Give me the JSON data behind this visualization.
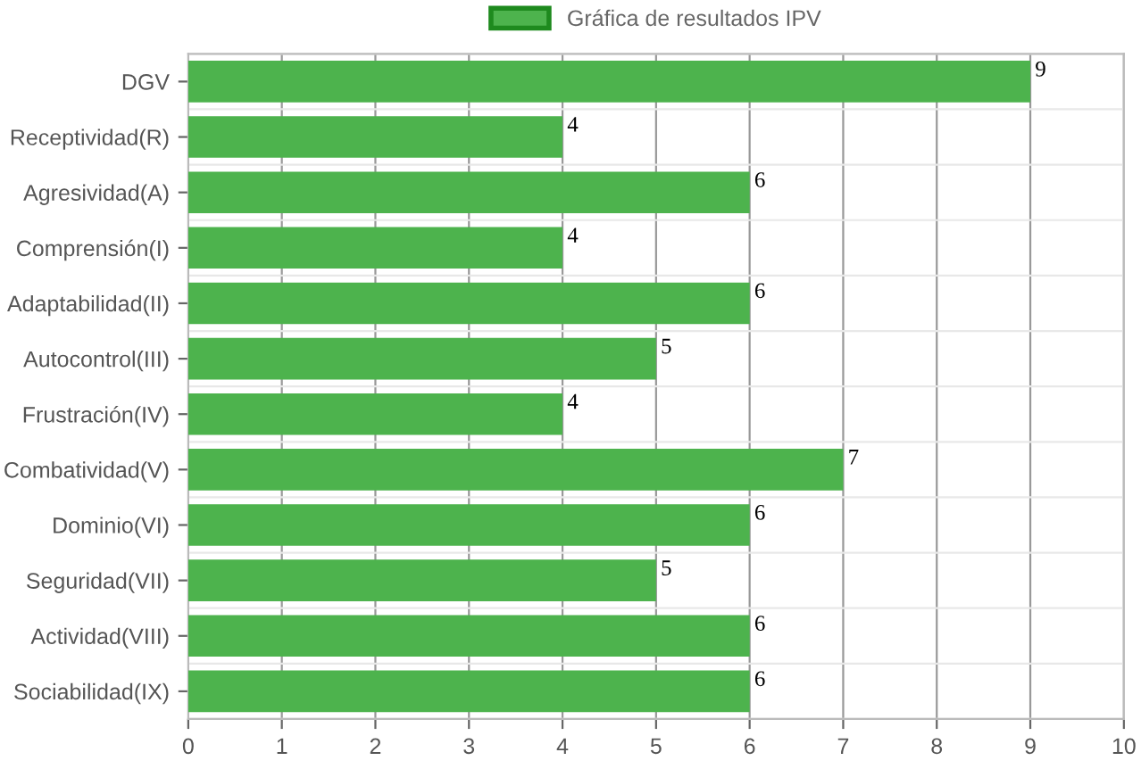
{
  "chart_data": {
    "type": "bar",
    "orientation": "horizontal",
    "categories": [
      "DGV",
      "Receptividad(R)",
      "Agresividad(A)",
      "Comprensión(I)",
      "Adaptabilidad(II)",
      "Autocontrol(III)",
      "Frustración(IV)",
      "Combatividad(V)",
      "Dominio(VI)",
      "Seguridad(VII)",
      "Actividad(VIII)",
      "Sociabilidad(IX)"
    ],
    "series": [
      {
        "name": "Gráfica de resultados IPV",
        "color": "#4db34d",
        "values": [
          9,
          4,
          6,
          4,
          6,
          5,
          4,
          7,
          6,
          5,
          6,
          6
        ]
      }
    ],
    "xlim": [
      0,
      10
    ],
    "xticks": [
      0,
      1,
      2,
      3,
      4,
      5,
      6,
      7,
      8,
      9,
      10
    ],
    "grid": "x",
    "legend": "top",
    "data_labels": true
  }
}
